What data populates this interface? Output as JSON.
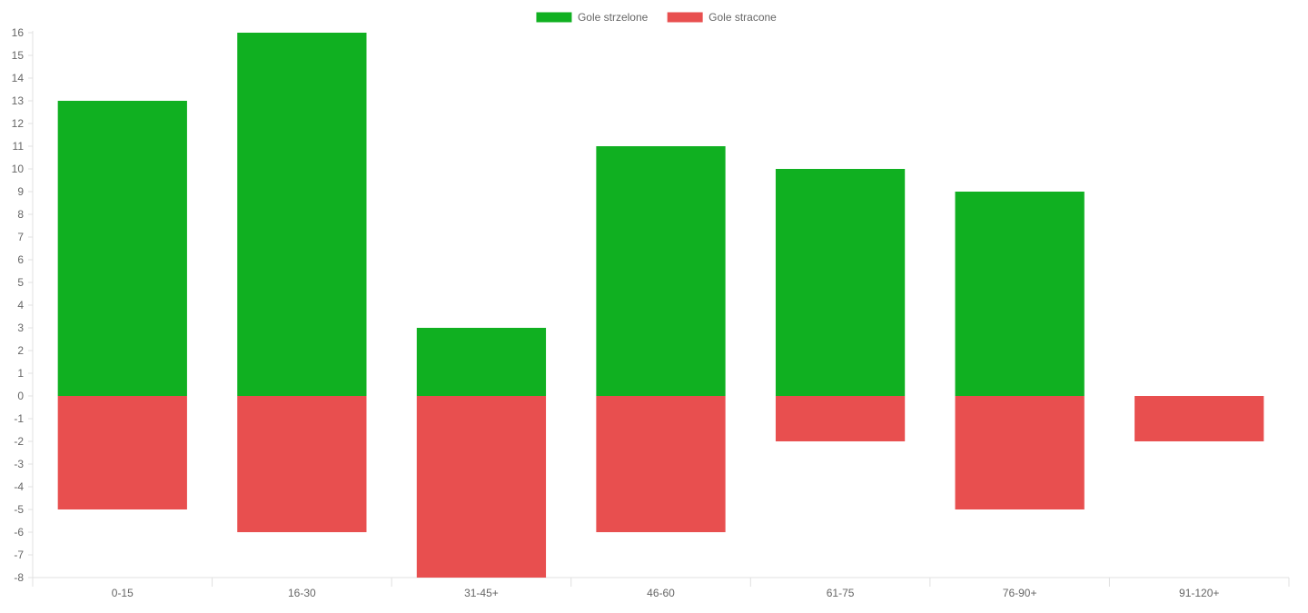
{
  "chart_data": {
    "type": "bar",
    "stacked": true,
    "categories": [
      "0-15",
      "16-30",
      "31-45+",
      "46-60",
      "61-75",
      "76-90+",
      "91-120+"
    ],
    "series": [
      {
        "name": "Gole strzelone",
        "color": "#10b021",
        "values": [
          13,
          16,
          3,
          11,
          10,
          9,
          0
        ]
      },
      {
        "name": "Gole stracone",
        "color": "#e84f4f",
        "values": [
          -5,
          -6,
          -8,
          -6,
          -2,
          -5,
          -2
        ]
      }
    ],
    "ylim": [
      -8,
      16
    ],
    "ytick_step": 1,
    "grid": false,
    "legend_position": "top-center"
  }
}
